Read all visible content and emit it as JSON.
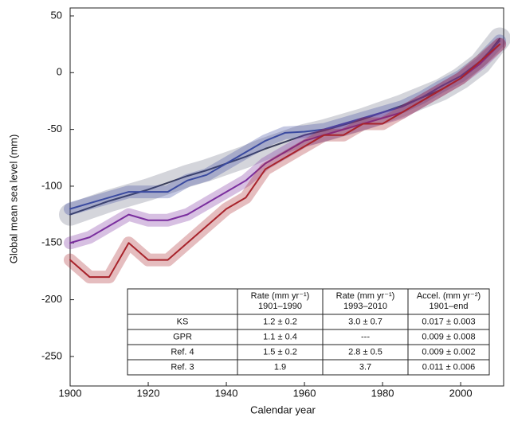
{
  "chart_data": {
    "type": "line",
    "xlabel": "Calendar year",
    "ylabel": "Global mean sea level (mm)",
    "x": [
      1900,
      1905,
      1910,
      1915,
      1920,
      1925,
      1930,
      1935,
      1940,
      1945,
      1950,
      1955,
      1960,
      1965,
      1970,
      1975,
      1980,
      1985,
      1990,
      1995,
      2000,
      2005,
      2010
    ],
    "series": [
      {
        "color": "#3b3f5c",
        "values": [
          -125,
          -119,
          -113,
          -108,
          -103,
          -97,
          -91,
          -86,
          -80,
          -74,
          -67,
          -61,
          -55,
          -51,
          -46,
          -41,
          -35,
          -29,
          -22,
          -15,
          -5,
          8,
          30
        ]
      },
      {
        "color": "#3a4aa0",
        "values": [
          -120,
          -115,
          -110,
          -105,
          -105,
          -105,
          -95,
          -90,
          -80,
          -70,
          -60,
          -53,
          -52,
          -50,
          -45,
          -40,
          -35,
          -30,
          -22,
          -12,
          -3,
          10,
          28
        ]
      },
      {
        "color": "#7a2e9e",
        "values": [
          -150,
          -145,
          -135,
          -125,
          -130,
          -130,
          -125,
          -115,
          -105,
          -95,
          -80,
          -70,
          -60,
          -55,
          -50,
          -45,
          -40,
          -35,
          -25,
          -15,
          -5,
          8,
          25
        ]
      },
      {
        "color": "#a8232b",
        "values": [
          -165,
          -180,
          -180,
          -150,
          -165,
          -165,
          -150,
          -135,
          -120,
          -110,
          -85,
          -75,
          -65,
          -55,
          -55,
          -45,
          -45,
          -35,
          -25,
          -15,
          -5,
          10,
          25
        ]
      }
    ],
    "xlim": [
      1900,
      2011
    ],
    "xticks": [
      1900,
      1920,
      1940,
      1960,
      1980,
      2000
    ],
    "ylim": [
      -276,
      57
    ],
    "yticks": [
      50,
      0,
      -50,
      -100,
      -150,
      -200,
      -250
    ],
    "table": {
      "header": [
        [
          "Rate (mm yr⁻¹)",
          "1901–1990"
        ],
        [
          "Rate (mm yr⁻¹)",
          "1993–2010"
        ],
        [
          "Accel. (mm yr⁻²)",
          "1901–end"
        ]
      ],
      "rows": [
        [
          "KS",
          "1.2 ± 0.2",
          "3.0 ± 0.7",
          "0.017 ± 0.003"
        ],
        [
          "GPR",
          "1.1 ± 0.4",
          "---",
          "0.009 ± 0.008"
        ],
        [
          "Ref. 4",
          "1.5 ± 0.2",
          "2.8 ± 0.5",
          "0.009 ± 0.002"
        ],
        [
          "Ref. 3",
          "1.9",
          "3.7",
          "0.011 ± 0.006"
        ]
      ]
    }
  }
}
